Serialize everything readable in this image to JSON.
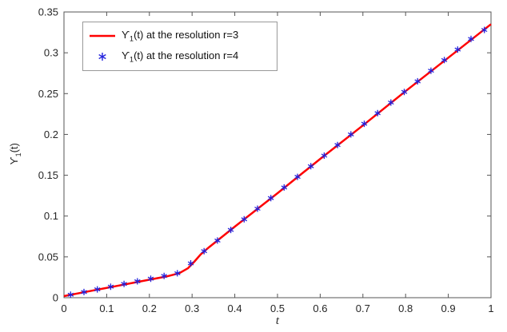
{
  "figure": {
    "background": "#ffffff"
  },
  "chart_data": {
    "type": "line",
    "title": "",
    "xlabel": "t",
    "ylabel_parts": {
      "symbol": "ϒ",
      "sub": "1",
      "rest": "(t)"
    },
    "xlim": [
      0,
      1
    ],
    "ylim": [
      0,
      0.35
    ],
    "xticks": [
      0,
      0.1,
      0.2,
      0.3,
      0.4,
      0.5,
      0.6,
      0.7,
      0.8,
      0.9,
      1
    ],
    "xtick_labels": [
      "0",
      "0.1",
      "0.2",
      "0.3",
      "0.4",
      "0.5",
      "0.6",
      "0.7",
      "0.8",
      "0.9",
      "1"
    ],
    "yticks": [
      0,
      0.05,
      0.1,
      0.15,
      0.2,
      0.25,
      0.3,
      0.35
    ],
    "ytick_labels": [
      "0",
      "0.05",
      "0.1",
      "0.15",
      "0.2",
      "0.25",
      "0.3",
      "0.35"
    ],
    "grid": false,
    "axis_color": "#555555",
    "tick_label_color": "#262626",
    "legend": {
      "position": "top-left",
      "border_color": "#999999"
    },
    "series": [
      {
        "type": "line",
        "color": "#ff0000",
        "width": 2.5,
        "label_parts": {
          "symbol": "ϒ",
          "sub": "1",
          "rest": "(t) at the resolution r=3"
        },
        "points": [
          [
            0,
            0.002
          ],
          [
            0.06,
            0.008
          ],
          [
            0.12,
            0.014
          ],
          [
            0.18,
            0.02
          ],
          [
            0.24,
            0.026
          ],
          [
            0.27,
            0.03
          ],
          [
            0.29,
            0.036
          ],
          [
            0.305,
            0.044
          ],
          [
            0.32,
            0.053
          ],
          [
            0.34,
            0.062
          ],
          [
            0.4,
            0.087
          ],
          [
            0.5,
            0.128
          ],
          [
            0.6,
            0.17
          ],
          [
            0.7,
            0.211
          ],
          [
            0.8,
            0.253
          ],
          [
            0.9,
            0.294
          ],
          [
            1.0,
            0.335
          ]
        ]
      },
      {
        "type": "scatter",
        "marker": "asterisk",
        "color": "#2222dd",
        "label_parts": {
          "symbol": "ϒ",
          "sub": "1",
          "rest": "(t) at the resolution r=4"
        },
        "x": [
          0.0156,
          0.0469,
          0.0781,
          0.1094,
          0.1406,
          0.1719,
          0.2031,
          0.2344,
          0.2656,
          0.2969,
          0.3281,
          0.3594,
          0.3906,
          0.4219,
          0.4531,
          0.4844,
          0.5156,
          0.5469,
          0.5781,
          0.6094,
          0.6406,
          0.6719,
          0.7031,
          0.7344,
          0.7656,
          0.7969,
          0.8281,
          0.8594,
          0.8906,
          0.9219,
          0.9531,
          0.9844
        ],
        "y": [
          0.0036,
          0.0069,
          0.0102,
          0.0135,
          0.0168,
          0.02,
          0.0233,
          0.0266,
          0.0299,
          0.042,
          0.057,
          0.07,
          0.083,
          0.096,
          0.109,
          0.122,
          0.135,
          0.148,
          0.161,
          0.174,
          0.187,
          0.2,
          0.213,
          0.226,
          0.239,
          0.252,
          0.265,
          0.278,
          0.291,
          0.304,
          0.317,
          0.328
        ]
      }
    ]
  }
}
